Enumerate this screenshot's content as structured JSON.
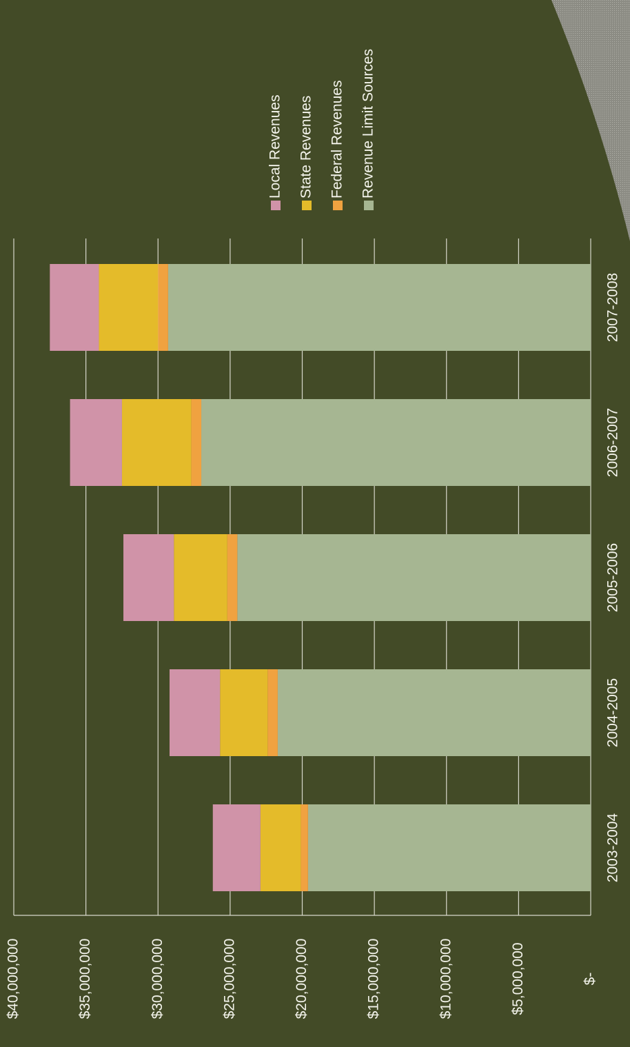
{
  "chart_data": {
    "type": "stacked-bar",
    "categories": [
      "2003-2004",
      "2004-2005",
      "2005-2006",
      "2006-2007",
      "2007-2008"
    ],
    "series": [
      {
        "name": "Revenue Limit  Sources",
        "color": "#a6b692",
        "values": [
          19600000,
          21700000,
          24500000,
          27000000,
          29300000
        ]
      },
      {
        "name": "Federal Revenues",
        "color": "#f0a240",
        "values": [
          500000,
          700000,
          700000,
          700000,
          700000
        ]
      },
      {
        "name": "State Revenues",
        "color": "#e4bb2a",
        "values": [
          2800000,
          3300000,
          3700000,
          4800000,
          4100000
        ]
      },
      {
        "name": "Local Revenues",
        "color": "#d093a8",
        "values": [
          3300000,
          3500000,
          3500000,
          3600000,
          3400000
        ]
      }
    ],
    "ylim": [
      0,
      40000000
    ],
    "yticks": [
      {
        "value": 0,
        "label": "$-"
      },
      {
        "value": 5000000,
        "label": "$5,000,000"
      },
      {
        "value": 10000000,
        "label": "$10,000,000"
      },
      {
        "value": 15000000,
        "label": "$15,000,000"
      },
      {
        "value": 20000000,
        "label": "$20,000,000"
      },
      {
        "value": 25000000,
        "label": "$25,000,000"
      },
      {
        "value": 30000000,
        "label": "$30,000,000"
      },
      {
        "value": 35000000,
        "label": "$35,000,000"
      },
      {
        "value": 40000000,
        "label": "$40,000,000"
      }
    ],
    "grid": true,
    "legend_order": "reverse"
  }
}
